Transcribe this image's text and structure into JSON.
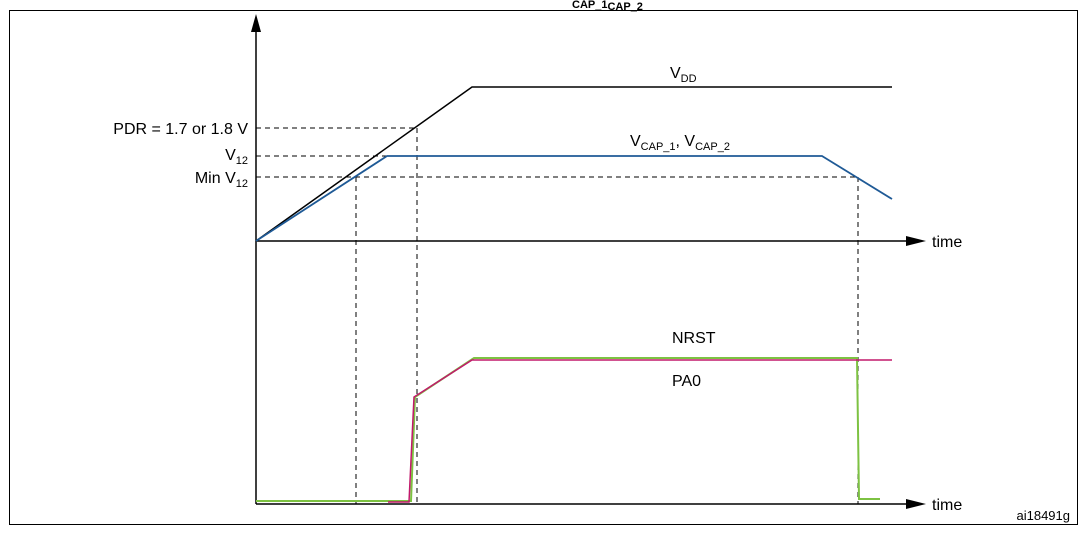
{
  "header_fragment": {
    "main": "",
    "sub1": "CAP_1",
    "mid": "",
    "sub2": "CAP_2"
  },
  "labels": {
    "pdr": "PDR = 1.7 or 1.8 V",
    "v12": {
      "main": "V",
      "sub": "12"
    },
    "min_v12": {
      "main": "Min V",
      "sub": "12"
    },
    "vdd": {
      "main": "V",
      "sub": "DD"
    },
    "vcap": {
      "v1": "V",
      "sub1": "CAP_1",
      "sep": ", V",
      "sub2": "CAP_2"
    },
    "time_upper": "time",
    "time_lower": "time",
    "nrst": "NRST",
    "pa0": "PA0",
    "figure_ref": "ai18491g"
  },
  "colors": {
    "vdd": "#000000",
    "vcap": "#1f5a96",
    "nrst": "#c2186b",
    "pa0": "#7dc242",
    "axis": "#000000",
    "guide": "#000000",
    "frame": "#000000"
  }
}
